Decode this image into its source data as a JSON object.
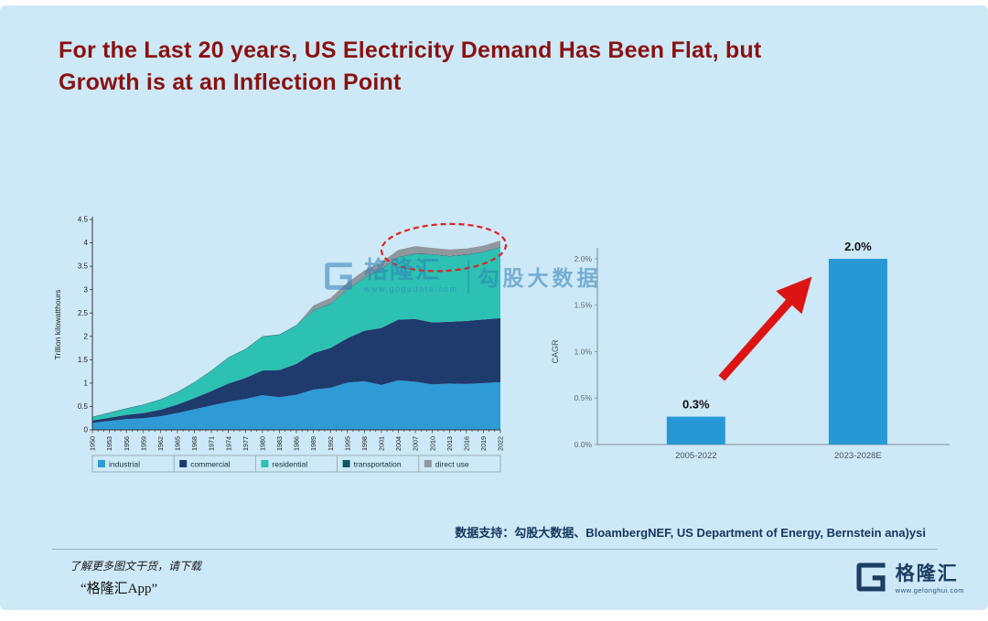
{
  "page": {
    "title_line1": "For the Last 20 years, US Electricity Demand Has Been Flat, but",
    "title_line2": "Growth is at an Inflection Point"
  },
  "colors": {
    "title": "#8a1111",
    "panel_background": "#cde8f6",
    "bar": "#2798d5",
    "arrow": "#dd1414",
    "ellipse": "#e02020",
    "brand_navy": "#1c3e63",
    "watermark_blue": "#2f7fb5"
  },
  "watermark": {
    "brand": "格隆汇",
    "url": "www.gogudata.com",
    "suffix": "勾股大数据"
  },
  "source_note": {
    "label": "数据支持：",
    "text": "勾股大数据、BloambergNEF, US Department of Energy, Bernstein ana)ysi"
  },
  "footer": {
    "promo_line1": "了解更多图文干货，请下载",
    "promo_line2": "“格隆汇App”",
    "logo_text": "格隆汇",
    "logo_url": "www.gelonghui.com"
  },
  "chart_data": [
    {
      "type": "area",
      "stacked": true,
      "title": "",
      "xlabel": "",
      "ylabel": "Trillion kilowatthours",
      "ylim": [
        0,
        4.5
      ],
      "yticks": [
        0,
        0.5,
        1,
        1.5,
        2,
        2.5,
        3,
        3.5,
        4,
        4.5
      ],
      "grid": false,
      "legend_position": "bottom",
      "categories": [
        "1950",
        "1953",
        "1956",
        "1959",
        "1962",
        "1965",
        "1968",
        "1971",
        "1974",
        "1977",
        "1980",
        "1983",
        "1986",
        "1989",
        "1992",
        "1995",
        "1998",
        "2001",
        "2004",
        "2007",
        "2010",
        "2013",
        "2016",
        "2019",
        "2022"
      ],
      "series": [
        {
          "name": "industrial",
          "color": "#2e9bd6",
          "values": [
            0.15,
            0.19,
            0.23,
            0.25,
            0.29,
            0.36,
            0.44,
            0.52,
            0.6,
            0.66,
            0.74,
            0.7,
            0.75,
            0.86,
            0.9,
            1.01,
            1.04,
            0.96,
            1.06,
            1.03,
            0.97,
            0.99,
            0.98,
            1.0,
            1.02
          ]
        },
        {
          "name": "commercial",
          "color": "#1f3a6d",
          "values": [
            0.05,
            0.07,
            0.09,
            0.11,
            0.14,
            0.18,
            0.24,
            0.31,
            0.39,
            0.45,
            0.53,
            0.58,
            0.66,
            0.78,
            0.85,
            0.95,
            1.08,
            1.22,
            1.3,
            1.34,
            1.33,
            1.32,
            1.35,
            1.36,
            1.37
          ]
        },
        {
          "name": "residential",
          "color": "#2cc1b2",
          "values": [
            0.07,
            0.1,
            0.13,
            0.17,
            0.21,
            0.26,
            0.33,
            0.43,
            0.55,
            0.61,
            0.72,
            0.75,
            0.82,
            0.91,
            0.94,
            1.04,
            1.13,
            1.25,
            1.33,
            1.39,
            1.45,
            1.4,
            1.41,
            1.44,
            1.51
          ]
        },
        {
          "name": "transportation",
          "color": "#155560",
          "values": [
            0.01,
            0.01,
            0.01,
            0.01,
            0.01,
            0.01,
            0.01,
            0.01,
            0.01,
            0.01,
            0.01,
            0.01,
            0.01,
            0.01,
            0.01,
            0.01,
            0.01,
            0.01,
            0.01,
            0.01,
            0.01,
            0.01,
            0.01,
            0.01,
            0.01
          ]
        },
        {
          "name": "direct use",
          "color": "#8e989e",
          "values": [
            0,
            0,
            0,
            0,
            0,
            0,
            0,
            0,
            0,
            0,
            0,
            0,
            0,
            0.1,
            0.12,
            0.14,
            0.15,
            0.15,
            0.15,
            0.16,
            0.13,
            0.14,
            0.13,
            0.13,
            0.14
          ]
        }
      ],
      "annotation": {
        "type": "ellipse",
        "style": "dashed",
        "color": "#e02020",
        "center_year": 2012,
        "center_value": 3.9,
        "rx_years": 11,
        "ry_value": 0.5,
        "note": "flat demand period circled"
      }
    },
    {
      "type": "bar",
      "title": "",
      "xlabel": "",
      "ylabel": "CAGR",
      "ylim": [
        0,
        2.0
      ],
      "yticks": [
        0.0,
        0.5,
        1.0,
        1.5,
        2.0
      ],
      "ytick_suffix": "%",
      "grid": false,
      "bar_color": "#2798d5",
      "categories": [
        "2005-2022",
        "2023-2028E"
      ],
      "values": [
        0.3,
        2.0
      ],
      "data_labels": [
        "0.3%",
        "2.0%"
      ],
      "annotation": {
        "type": "arrow",
        "color": "#dd1414",
        "from_category": "2005-2022",
        "to_category": "2023-2028E",
        "note": "sharp acceleration in demand growth"
      }
    }
  ]
}
